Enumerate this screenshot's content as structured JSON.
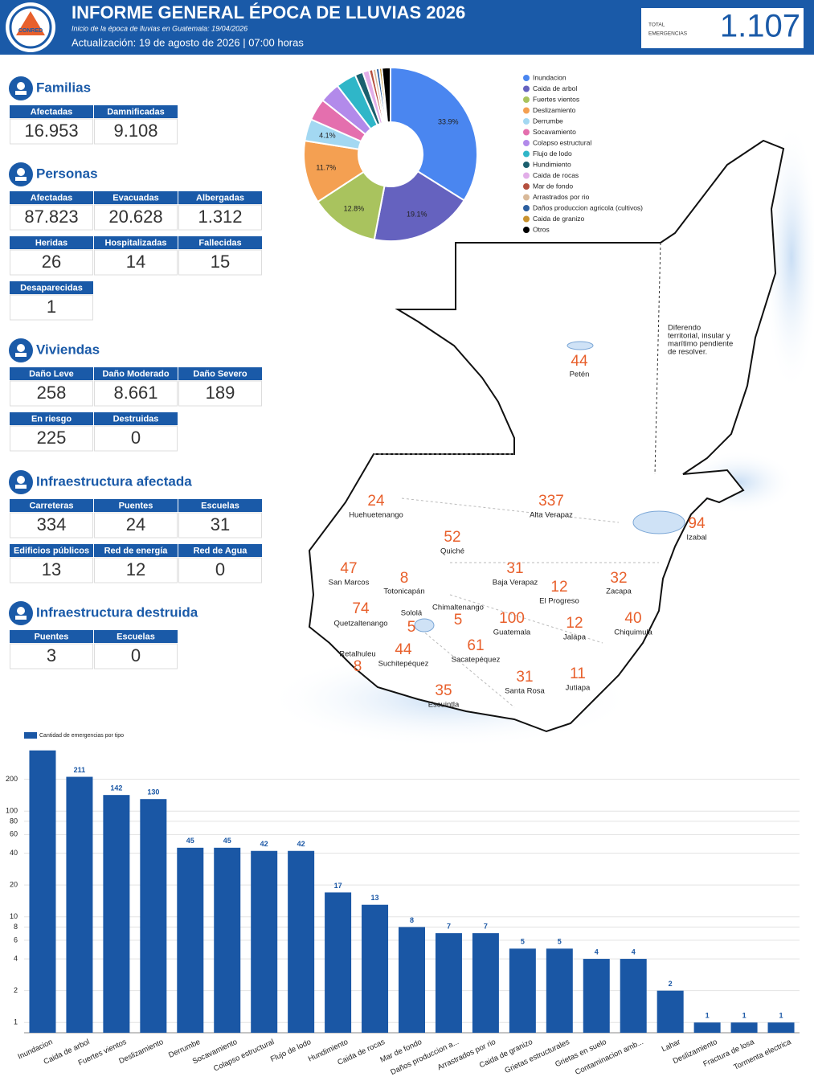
{
  "header": {
    "logo": "CONRED",
    "title": "INFORME GENERAL ÉPOCA DE LLUVIAS 2026",
    "subtitle": "Inicio de la época de lluvias en Guatemala: 19/04/2026",
    "update": "Actualización: 19 de agosto de 2026 | 07:00 horas",
    "total_label": [
      "TOTAL",
      "EMERGENCIAS"
    ],
    "total": "1.107"
  },
  "panels": [
    {
      "title": "Familias",
      "rows": [
        [
          {
            "label": "Afectadas",
            "value": "16.953"
          },
          {
            "label": "Damnificadas",
            "value": "9.108"
          }
        ]
      ]
    },
    {
      "title": "Personas",
      "rows": [
        [
          {
            "label": "Afectadas",
            "value": "87.823"
          },
          {
            "label": "Evacuadas",
            "value": "20.628"
          },
          {
            "label": "Albergadas",
            "value": "1.312"
          }
        ],
        [
          {
            "label": "Heridas",
            "value": "26"
          },
          {
            "label": "Hospitalizadas",
            "value": "14"
          },
          {
            "label": "Fallecidas",
            "value": "15"
          }
        ],
        [
          {
            "label": "Desaparecidas",
            "value": "1"
          }
        ]
      ]
    },
    {
      "title": "Viviendas",
      "rows": [
        [
          {
            "label": "Daño Leve",
            "value": "258"
          },
          {
            "label": "Daño Moderado",
            "value": "8.661"
          },
          {
            "label": "Daño Severo",
            "value": "189"
          }
        ],
        [
          {
            "label": "En riesgo",
            "value": "225"
          },
          {
            "label": "Destruidas",
            "value": "0"
          }
        ]
      ]
    },
    {
      "title": "Infraestructura afectada",
      "rows": [
        [
          {
            "label": "Carreteras",
            "value": "334"
          },
          {
            "label": "Puentes",
            "value": "24"
          },
          {
            "label": "Escuelas",
            "value": "31"
          }
        ],
        [
          {
            "label": "Edificios públicos",
            "value": "13"
          },
          {
            "label": "Red de energía",
            "value": "12"
          },
          {
            "label": "Red de Agua",
            "value": "0"
          }
        ]
      ]
    },
    {
      "title": "Infraestructura destruida",
      "rows": [
        [
          {
            "label": "Puentes",
            "value": "3"
          },
          {
            "label": "Escuelas",
            "value": "0"
          }
        ]
      ]
    }
  ],
  "chart_data": [
    {
      "type": "donut",
      "categories": [
        "Inundacion",
        "Caida de arbol",
        "Fuertes vientos",
        "Deslizamiento",
        "Derrumbe",
        "Socavamiento",
        "Colapso estructural",
        "Flujo de lodo",
        "Hundimiento",
        "Caida de rocas",
        "Mar de fondo",
        "Arrastrados por rio",
        "Daños produccion agricola (cultivos)",
        "Caida de granizo",
        "Otros"
      ],
      "values": [
        33.9,
        19.1,
        12.8,
        11.7,
        4.1,
        4.1,
        3.8,
        3.8,
        1.5,
        1.2,
        0.7,
        0.6,
        0.6,
        0.5,
        1.6
      ],
      "value_labels": [
        "33.9%",
        "19.1%",
        "12.8%",
        "11.7%",
        "4.1%",
        null,
        null,
        null,
        null,
        null,
        null,
        null,
        null,
        null,
        null
      ],
      "colors": [
        "#4a86f0",
        "#6562bf",
        "#a9c35e",
        "#f4a052",
        "#a3d8f2",
        "#e46fae",
        "#b28aea",
        "#2fb6c8",
        "#1b5f6e",
        "#e2aee8",
        "#b5503f",
        "#d9b999",
        "#2c5fa0",
        "#c8922f",
        "#000000"
      ]
    },
    {
      "type": "bar",
      "categories": [
        "Inundacion",
        "Caida de arbol",
        "Fuertes vientos",
        "Deslizamiento",
        "Derrumbe",
        "Socavamiento",
        "Colapso estructural",
        "Flujo de lodo",
        "Hundimiento",
        "Caida de rocas",
        "Mar de fondo",
        "Daños produccion a...",
        "Arrastrados por rio",
        "Caida de granizo",
        "Grietas estructurales",
        "Grietas en suelo",
        "Contaminacion amb...",
        "Lahar",
        "Deslizamiento",
        "Fractura de losa",
        "Tormenta electrica"
      ],
      "series": [
        {
          "name": "Cantidad de emergencias por tipo",
          "color": "#1a57a5",
          "values": [
            375,
            211,
            142,
            130,
            45,
            45,
            42,
            42,
            17,
            13,
            8,
            7,
            7,
            5,
            5,
            4,
            4,
            2,
            1,
            1,
            1
          ],
          "value_labels": [
            null,
            "211",
            "142",
            "130",
            "45",
            "45",
            "42",
            "42",
            "17",
            "13",
            "8",
            "7",
            "7",
            "5",
            "5",
            "4",
            "4",
            "2",
            "1",
            "1",
            "1"
          ]
        }
      ],
      "ylim": [
        0.8,
        400
      ],
      "yticks": [
        1,
        2,
        4,
        6,
        8,
        10,
        20,
        40,
        60,
        80,
        100,
        200
      ],
      "log_scale": true,
      "grid": true
    }
  ],
  "map": {
    "note": [
      "Diferendo",
      "territorial, insular y",
      "marítimo pendiente",
      "de resolver."
    ],
    "departments": [
      {
        "name": "Petén",
        "value": "44"
      },
      {
        "name": "Huehuetenango",
        "value": "24"
      },
      {
        "name": "Alta Verapaz",
        "value": "337"
      },
      {
        "name": "Izabal",
        "value": "94"
      },
      {
        "name": "Quiché",
        "value": "52"
      },
      {
        "name": "San Marcos",
        "value": "47"
      },
      {
        "name": "Totonicapán",
        "value": "8"
      },
      {
        "name": "Baja Verapaz",
        "value": "31"
      },
      {
        "name": "El Progreso",
        "value": "12"
      },
      {
        "name": "Zacapa",
        "value": "32"
      },
      {
        "name": "Quetzaltenango",
        "value": "74"
      },
      {
        "name": "Sololá",
        "value": "5"
      },
      {
        "name": "Chimaltenango",
        "value": "5"
      },
      {
        "name": "Guatemala",
        "value": "100"
      },
      {
        "name": "Jalapa",
        "value": "12"
      },
      {
        "name": "Chiquimula",
        "value": "40"
      },
      {
        "name": "Retalhuleu",
        "value": "8"
      },
      {
        "name": "Suchitepéquez",
        "value": "44"
      },
      {
        "name": "Sacatepéquez",
        "value": "61"
      },
      {
        "name": "Escuintla",
        "value": "35"
      },
      {
        "name": "Santa Rosa",
        "value": "31"
      },
      {
        "name": "Jutiapa",
        "value": "11"
      }
    ]
  }
}
